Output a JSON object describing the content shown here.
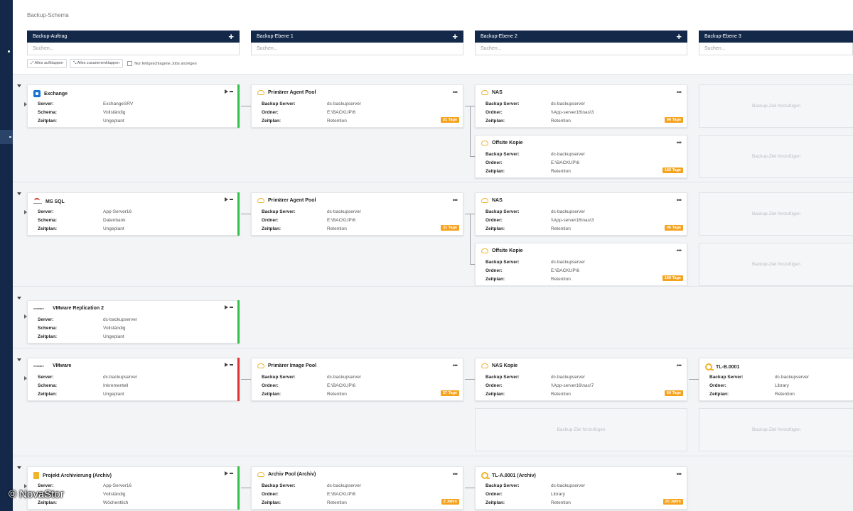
{
  "page_title": "Backup-Schema",
  "columns": [
    {
      "label": "Backup-Auftrag",
      "placeholder": "Suchen..."
    },
    {
      "label": "Backup-Ebene 1",
      "placeholder": "Suchen..."
    },
    {
      "label": "Backup-Ebene 2",
      "placeholder": "Suchen..."
    },
    {
      "label": "Backup-Ebene 3",
      "placeholder": "Suchen..."
    }
  ],
  "toolbar": {
    "expand_all": "Alles aufklappen",
    "collapse_all": "Alles zusammenklappen",
    "failed_only": "Nur fehlgeschlagene Jobs anzeigen"
  },
  "add_target": "Backup-Ziel hinzufügen",
  "labels": {
    "server": "Server:",
    "schema": "Schema:",
    "zeitplan": "Zeitplan:",
    "backup_server": "Backup Server:",
    "ordner": "Ordner:"
  },
  "groups": [
    {
      "job": {
        "name": "Exchange",
        "icon": "exchange-icon",
        "server": "ExchangeSRV",
        "schema": "Vollständig",
        "zeitplan": "Ungeplant",
        "status": "ok"
      },
      "l1": [
        {
          "name": "Primärer Agent Pool",
          "icon": "cloud-icon",
          "backup_server": "dc-backupserver",
          "ordner": "E:\\BACKUP\\6",
          "zeitplan": "Retention",
          "badge": "31 Tage"
        }
      ],
      "l2": [
        {
          "name": "NAS",
          "icon": "cloud-icon",
          "backup_server": "dc-backupserver",
          "ordner": "\\\\App-server16\\nas\\3",
          "zeitplan": "Retention",
          "badge": "96 Tage"
        },
        {
          "name": "Offsite Kopie",
          "icon": "cloud-icon",
          "backup_server": "dc-backupserver",
          "ordner": "E:\\BACKUP\\6",
          "zeitplan": "Retention",
          "badge": "180 Tage"
        }
      ]
    },
    {
      "job": {
        "name": "MS SQL",
        "icon": "mssql-icon",
        "server": "App-Server16",
        "schema": "Datenbank",
        "zeitplan": "Ungeplant",
        "status": "ok"
      },
      "l1": [
        {
          "name": "Primärer Agent Pool",
          "icon": "cloud-icon",
          "backup_server": "dc-backupserver",
          "ordner": "E:\\BACKUP\\6",
          "zeitplan": "Retention",
          "badge": "31 Tage"
        }
      ],
      "l2": [
        {
          "name": "NAS",
          "icon": "cloud-icon",
          "backup_server": "dc-backupserver",
          "ordner": "\\\\App-server16\\nas\\3",
          "zeitplan": "Retention",
          "badge": "96 Tage"
        },
        {
          "name": "Offsite Kopie",
          "icon": "cloud-icon",
          "backup_server": "dc-backupserver",
          "ordner": "E:\\BACKUP\\6",
          "zeitplan": "Retention",
          "badge": "180 Tage"
        }
      ]
    },
    {
      "job": {
        "name": "VMware Replication 2",
        "icon": "vmware-icon",
        "server": "dc-backupserver",
        "schema": "Vollständig",
        "zeitplan": "Ungeplant",
        "status": "ok"
      }
    },
    {
      "job": {
        "name": "VMware",
        "icon": "vmware-icon",
        "server": "dc-backupserver",
        "schema": "Inkrementell",
        "zeitplan": "Ungeplant",
        "status": "err"
      },
      "l1": [
        {
          "name": "Primärer Image Pool",
          "icon": "cloud-icon",
          "backup_server": "dc-backupserver",
          "ordner": "E:\\BACKUP\\6",
          "zeitplan": "Retention",
          "badge": "37 Tage"
        }
      ],
      "l2": [
        {
          "name": "NAS Kopie",
          "icon": "cloud-icon",
          "backup_server": "dc-backupserver",
          "ordner": "\\\\App-server16\\nas\\7",
          "zeitplan": "Retention",
          "badge": "60 Tage"
        }
      ],
      "l3": [
        {
          "name": "TL-B.0001",
          "icon": "tape-icon",
          "backup_server": "dc-backupserver",
          "ordner": "Library",
          "zeitplan": "Retention"
        }
      ]
    },
    {
      "job": {
        "name": "Projekt Archivierung (Archiv)",
        "icon": "archive-icon",
        "server": "App-Server16",
        "schema": "Vollständig",
        "zeitplan": "Wöchentlich",
        "status": "ok"
      },
      "l1": [
        {
          "name": "Archiv Pool (Archiv)",
          "icon": "cloud-icon",
          "backup_server": "dc-backupserver",
          "ordner": "E:\\BACKUP\\6",
          "zeitplan": "Retention",
          "badge": "2 Jahre"
        }
      ],
      "l2": [
        {
          "name": "TL-A.0001 (Archiv)",
          "icon": "tape-icon",
          "backup_server": "dc-backupserver",
          "ordner": "Library",
          "zeitplan": "Retention",
          "badge": "20 Jahre"
        }
      ]
    }
  ],
  "watermark": "© NovaStor",
  "colors": {
    "header": "#14294a",
    "accent_ok": "#35c24a",
    "accent_err": "#e03232",
    "badge": "#f5a31f"
  }
}
